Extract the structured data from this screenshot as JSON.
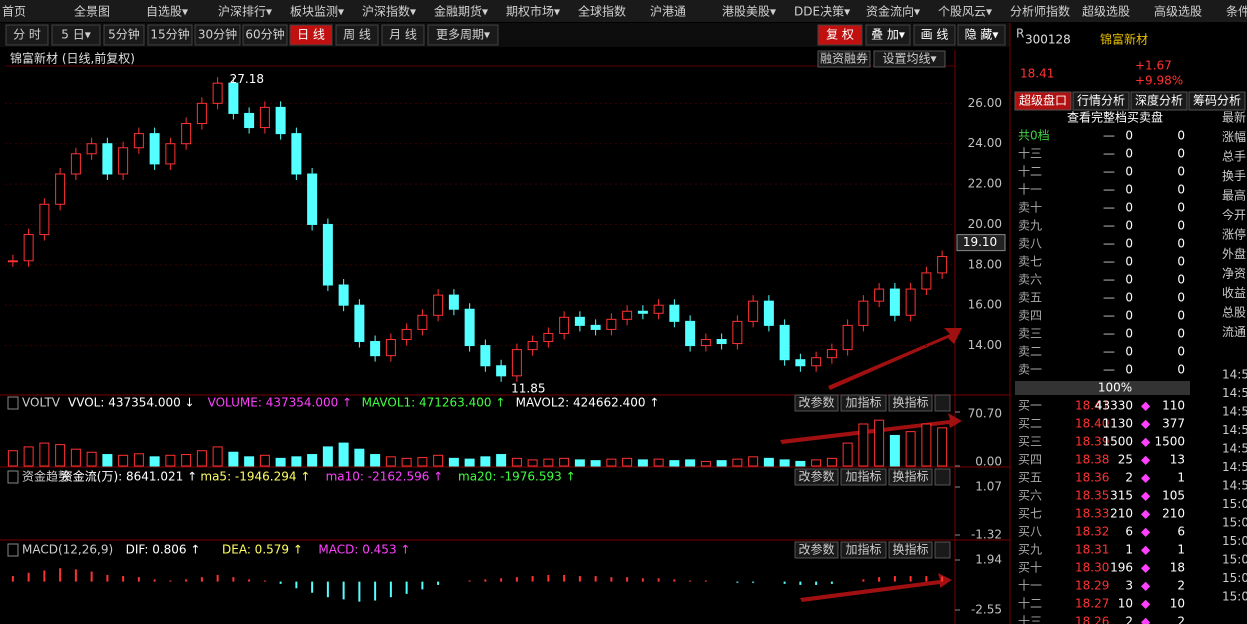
{
  "menu": [
    "首页",
    "全景图",
    "自选股▾",
    "沪深排行▾",
    "板块监测▾",
    "沪深指数▾",
    "金融期货▾",
    "期权市场▾",
    "全球指数",
    "沪港通",
    "港股美股▾",
    "DDE决策▾",
    "资金流向▾",
    "个股风云▾",
    "分析师指数",
    "超级选股",
    "高级选股",
    "条件"
  ],
  "toolbar": {
    "left": [
      "分 时",
      "5 日▾",
      "5分钟",
      "15分钟",
      "30分钟",
      "60分钟",
      "日 线",
      "周 线",
      "月 线",
      "更多周期▾"
    ],
    "active": 6,
    "right": [
      "复 权",
      "叠 加▾",
      "画 线",
      "隐 藏▾"
    ]
  },
  "chart": {
    "title": "锦富新材 (日线,前复权)",
    "buttons": [
      "融资融券",
      "设置均线▾"
    ],
    "price": {
      "ylim": [
        11.7,
        27.8
      ],
      "yticks": [
        {
          "value": 14,
          "label": "14.00"
        },
        {
          "value": 16,
          "label": "16.00"
        },
        {
          "value": 18,
          "label": "18.00"
        },
        {
          "value": 20,
          "label": "20.00"
        },
        {
          "value": 22,
          "label": "22.00"
        },
        {
          "value": 24,
          "label": "24.00"
        },
        {
          "value": 26,
          "label": "26.00"
        }
      ],
      "current": {
        "value": 19.1,
        "label": "19.10"
      },
      "high": 27.18,
      "low": 11.85,
      "closes": [
        18.2,
        19.5,
        21,
        22.5,
        23.5,
        24,
        22.5,
        23.8,
        24.5,
        23,
        24,
        25,
        26,
        27,
        25.5,
        24.8,
        25.8,
        24.5,
        22.5,
        20,
        17,
        16,
        14.2,
        13.5,
        14.3,
        14.8,
        15.5,
        16.5,
        15.8,
        14,
        13,
        12.5,
        13.8,
        14.2,
        14.6,
        15.4,
        15,
        14.8,
        15.3,
        15.7,
        15.6,
        16,
        15.2,
        14,
        14.3,
        14.1,
        15.2,
        16.2,
        15,
        13.3,
        13,
        13.4,
        13.8,
        15,
        16.2,
        16.8,
        15.5,
        16.8,
        17.6,
        18.41
      ]
    },
    "panel_buttons": [
      "改参数",
      "加指标",
      "换指标"
    ],
    "volume": {
      "header": [
        "VOLTV",
        "VVOL: 437354.000 ↓",
        "VOLUME: 437354.000 ↑",
        "MAVOL1: 471263.400 ↑",
        "MAVOL2: 424662.400 ↑"
      ],
      "ylim": [
        0,
        70.7
      ],
      "yticks": [
        {
          "value": 0,
          "label": "0.00"
        },
        {
          "value": 70.7,
          "label": "70.70"
        }
      ],
      "values": [
        20,
        25,
        30,
        28,
        22,
        18,
        15,
        14,
        16,
        12,
        14,
        15,
        20,
        25,
        18,
        12,
        14,
        10,
        12,
        15,
        25,
        30,
        22,
        15,
        12,
        10,
        11,
        14,
        10,
        9,
        12,
        15,
        10,
        8,
        9,
        10,
        8,
        7,
        9,
        10,
        8,
        9,
        7,
        8,
        6,
        7,
        9,
        12,
        10,
        8,
        6,
        8,
        10,
        30,
        55,
        60,
        40,
        45,
        55,
        50
      ]
    },
    "funds": {
      "header": [
        "资金趋势",
        "资金流(万): 8641.021 ↑",
        "ma5: -1946.294 ↑",
        "ma10: -2162.596 ↑",
        "ma20: -1976.593 ↑"
      ],
      "ylim": [
        -1.32,
        1.07
      ],
      "yticks": [
        1.07,
        -1.32
      ]
    },
    "macd": {
      "header": [
        "MACD(12,26,9)",
        "DIF: 0.806 ↑",
        "DEA: 0.579 ↑",
        "MACD: 0.453 ↑"
      ],
      "ylim": [
        -2.55,
        1.94
      ],
      "yticks": [
        1.94,
        -2.55
      ],
      "values": [
        0.5,
        0.8,
        1.0,
        1.2,
        1.1,
        0.9,
        0.6,
        0.5,
        0.4,
        0.2,
        0.1,
        0.2,
        0.4,
        0.6,
        0.4,
        0.2,
        0.1,
        -0.2,
        -0.6,
        -1.0,
        -1.4,
        -1.6,
        -1.8,
        -1.7,
        -1.4,
        -1.1,
        -0.7,
        -0.3,
        0,
        0.1,
        0.2,
        0.3,
        0.4,
        0.5,
        0.6,
        0.6,
        0.5,
        0.5,
        0.4,
        0.4,
        0.3,
        0.3,
        0.2,
        0.1,
        0.1,
        0,
        -0.1,
        -0.1,
        0,
        -0.2,
        -0.3,
        -0.3,
        -0.2,
        0,
        0.2,
        0.4,
        0.5,
        0.5,
        0.5,
        0.45
      ]
    }
  },
  "quote": {
    "market": "R",
    "code": "300128",
    "name": "锦富新材",
    "price": "18.41",
    "change": "+1.67",
    "pct": "+9.98%",
    "tabs": [
      "超级盘口",
      "行情分析",
      "深度分析",
      "筹码分析"
    ],
    "link": "查看完整档买卖盘",
    "total": [
      "共0档",
      "—",
      "0",
      "0"
    ],
    "asks": [
      [
        "十三",
        "—",
        "0",
        "0"
      ],
      [
        "十二",
        "—",
        "0",
        "0"
      ],
      [
        "十一",
        "—",
        "0",
        "0"
      ],
      [
        "卖十",
        "—",
        "0",
        "0"
      ],
      [
        "卖九",
        "—",
        "0",
        "0"
      ],
      [
        "卖八",
        "—",
        "0",
        "0"
      ],
      [
        "卖七",
        "—",
        "0",
        "0"
      ],
      [
        "卖六",
        "—",
        "0",
        "0"
      ],
      [
        "卖五",
        "—",
        "0",
        "0"
      ],
      [
        "卖四",
        "—",
        "0",
        "0"
      ],
      [
        "卖三",
        "—",
        "0",
        "0"
      ],
      [
        "卖二",
        "—",
        "0",
        "0"
      ],
      [
        "卖一",
        "—",
        "0",
        "0"
      ]
    ],
    "ratio": "100%",
    "bids": [
      [
        "买一",
        "18.41",
        "43330",
        "110"
      ],
      [
        "买二",
        "18.40",
        "1130",
        "377"
      ],
      [
        "买三",
        "18.39",
        "1500",
        "1500"
      ],
      [
        "买四",
        "18.38",
        "25",
        "13"
      ],
      [
        "买五",
        "18.36",
        "2",
        "1"
      ],
      [
        "买六",
        "18.35",
        "315",
        "105"
      ],
      [
        "买七",
        "18.33",
        "210",
        "210"
      ],
      [
        "买八",
        "18.32",
        "6",
        "6"
      ],
      [
        "买九",
        "18.31",
        "1",
        "1"
      ],
      [
        "买十",
        "18.30",
        "196",
        "18"
      ],
      [
        "十一",
        "18.29",
        "3",
        "2"
      ],
      [
        "十二",
        "18.27",
        "10",
        "10"
      ],
      [
        "十三",
        "18.26",
        "2",
        "2"
      ]
    ],
    "side_labels": [
      "最新",
      "涨幅",
      "总手",
      "换手",
      "最高",
      "今开",
      "涨停",
      "外盘",
      "净资",
      "收益",
      "总股",
      "流通"
    ],
    "times": [
      "14:5",
      "14:5",
      "14:5",
      "14:5",
      "14:5",
      "14:5",
      "14:5",
      "15:0",
      "15:0",
      "15:0",
      "15:0",
      "15:0",
      "15:0"
    ]
  }
}
